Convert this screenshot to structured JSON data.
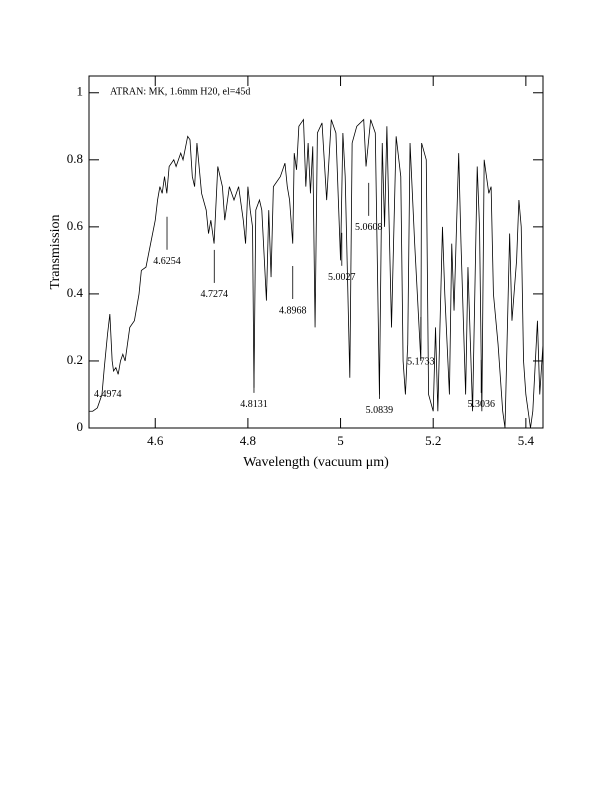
{
  "chart_data": {
    "type": "line",
    "annotation_title": "ATRAN: MK, 1.6mm H20, el=45d",
    "xlabel": "Wavelength (vacuum μm)",
    "ylabel": "Transmission",
    "xlim": [
      4.457,
      5.437
    ],
    "ylim": [
      0,
      1.05
    ],
    "xticks": [
      4.6,
      4.8,
      5,
      5.2,
      5.4
    ],
    "yticks": [
      0,
      0.2,
      0.4,
      0.6,
      0.8,
      1
    ],
    "color": "#000000",
    "x": [
      4.457,
      4.465,
      4.475,
      4.485,
      4.49,
      4.497,
      4.502,
      4.507,
      4.51,
      4.515,
      4.52,
      4.525,
      4.53,
      4.535,
      4.54,
      4.545,
      4.555,
      4.565,
      4.57,
      4.58,
      4.59,
      4.6,
      4.605,
      4.61,
      4.615,
      4.62,
      4.625,
      4.63,
      4.64,
      4.645,
      4.655,
      4.66,
      4.67,
      4.675,
      4.68,
      4.685,
      4.69,
      4.7,
      4.71,
      4.715,
      4.72,
      4.727,
      4.735,
      4.745,
      4.75,
      4.76,
      4.77,
      4.78,
      4.79,
      4.795,
      4.8,
      4.805,
      4.81,
      4.8131,
      4.817,
      4.825,
      4.83,
      4.84,
      4.845,
      4.85,
      4.855,
      4.87,
      4.88,
      4.885,
      4.89,
      4.8968,
      4.9,
      4.905,
      4.91,
      4.92,
      4.925,
      4.93,
      4.935,
      4.94,
      4.945,
      4.95,
      4.96,
      4.97,
      4.98,
      4.99,
      5.0,
      5.005,
      5.01,
      5.02,
      5.025,
      5.035,
      5.05,
      5.055,
      5.065,
      5.075,
      5.0839,
      5.09,
      5.095,
      5.1,
      5.11,
      5.12,
      5.13,
      5.135,
      5.14,
      5.145,
      5.15,
      5.16,
      5.1733,
      5.175,
      5.185,
      5.19,
      5.2,
      5.205,
      5.21,
      5.22,
      5.225,
      5.235,
      5.24,
      5.245,
      5.255,
      5.26,
      5.27,
      5.275,
      5.285,
      5.295,
      5.3,
      5.305,
      5.31,
      5.32,
      5.325,
      5.33,
      5.34,
      5.35,
      5.355,
      5.365,
      5.37,
      5.38,
      5.385,
      5.39,
      5.395,
      5.4,
      5.41,
      5.415,
      5.425,
      5.43,
      5.437
    ],
    "values": [
      0.05,
      0.05,
      0.06,
      0.1,
      0.18,
      0.28,
      0.34,
      0.2,
      0.17,
      0.18,
      0.16,
      0.2,
      0.22,
      0.2,
      0.25,
      0.3,
      0.32,
      0.4,
      0.47,
      0.48,
      0.55,
      0.62,
      0.68,
      0.72,
      0.7,
      0.75,
      0.7,
      0.78,
      0.8,
      0.78,
      0.82,
      0.8,
      0.87,
      0.86,
      0.75,
      0.72,
      0.85,
      0.7,
      0.65,
      0.58,
      0.62,
      0.55,
      0.78,
      0.72,
      0.62,
      0.72,
      0.68,
      0.72,
      0.62,
      0.55,
      0.72,
      0.65,
      0.6,
      0.12,
      0.65,
      0.68,
      0.65,
      0.38,
      0.65,
      0.45,
      0.72,
      0.75,
      0.79,
      0.72,
      0.68,
      0.55,
      0.82,
      0.77,
      0.9,
      0.92,
      0.72,
      0.85,
      0.7,
      0.84,
      0.3,
      0.88,
      0.91,
      0.68,
      0.92,
      0.88,
      0.5,
      0.88,
      0.75,
      0.15,
      0.85,
      0.9,
      0.92,
      0.78,
      0.92,
      0.88,
      0.1,
      0.85,
      0.6,
      0.9,
      0.3,
      0.87,
      0.75,
      0.2,
      0.1,
      0.25,
      0.85,
      0.55,
      0.2,
      0.85,
      0.8,
      0.1,
      0.05,
      0.3,
      0.05,
      0.6,
      0.4,
      0.1,
      0.55,
      0.35,
      0.82,
      0.55,
      0.1,
      0.48,
      0.05,
      0.78,
      0.6,
      0.05,
      0.8,
      0.7,
      0.72,
      0.4,
      0.25,
      0.05,
      0.0,
      0.58,
      0.32,
      0.5,
      0.68,
      0.6,
      0.2,
      0.1,
      0.0,
      0.05,
      0.32,
      0.1,
      0.25
    ],
    "annotations": [
      {
        "text": "4.4974",
        "x": 4.4974,
        "y": 0.099
      },
      {
        "text": "4.6254",
        "x": 4.6254,
        "y": 0.496
      },
      {
        "text": "4.7274",
        "x": 4.7274,
        "y": 0.397
      },
      {
        "text": "4.8131",
        "x": 4.8131,
        "y": 0.069
      },
      {
        "text": "4.8968",
        "x": 4.8968,
        "y": 0.349
      },
      {
        "text": "5.0027",
        "x": 5.0027,
        "y": 0.448
      },
      {
        "text": "5.0608",
        "x": 5.0608,
        "y": 0.597
      },
      {
        "text": "5.0839",
        "x": 5.0839,
        "y": 0.051
      },
      {
        "text": "5.1733",
        "x": 5.1733,
        "y": 0.197
      },
      {
        "text": "5.3036",
        "x": 5.3036,
        "y": 0.069
      }
    ]
  }
}
